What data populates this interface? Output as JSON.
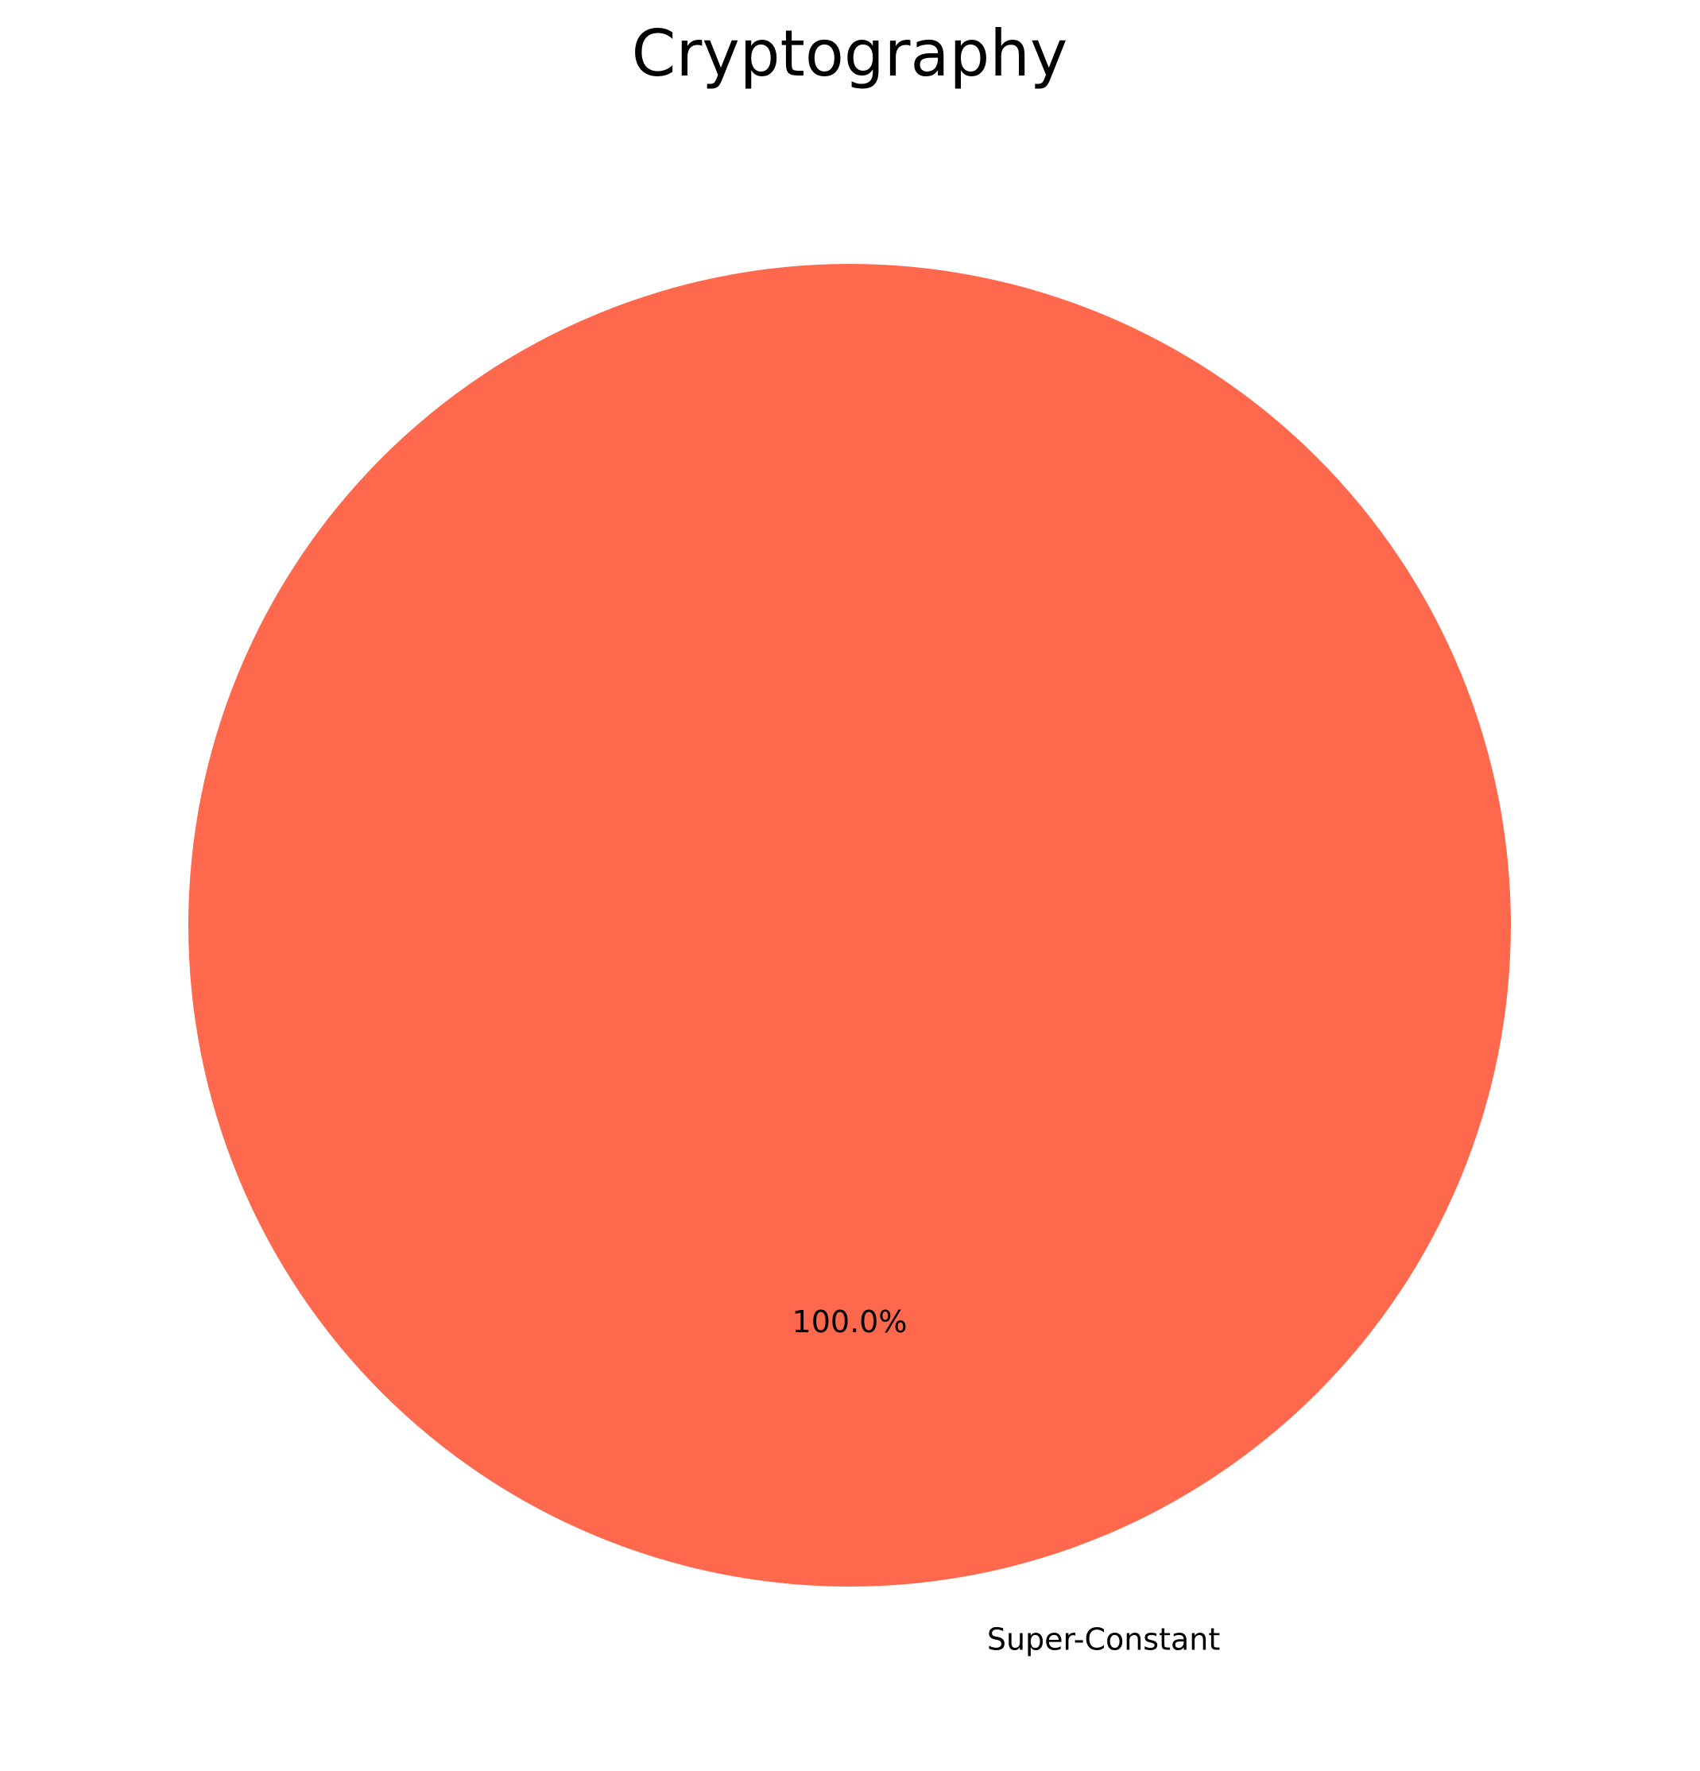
{
  "chart_data": {
    "type": "pie",
    "title": "Cryptography",
    "slices": [
      {
        "label": "Super-Constant",
        "value": 100.0,
        "pct_label": "100.0%",
        "color": "#fe684c"
      }
    ]
  }
}
